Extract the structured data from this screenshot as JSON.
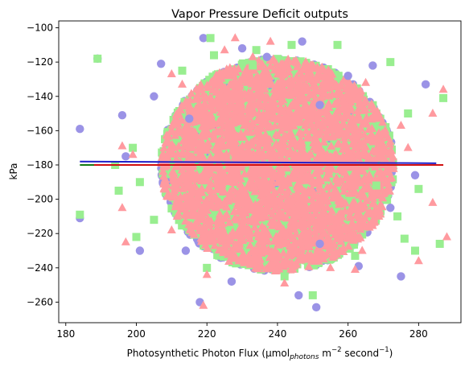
{
  "chart_data": {
    "type": "scatter",
    "title": "Vapor Pressure Deficit outputs",
    "xlabel_main": "Photosynthetic Photon Flux (µmol",
    "xlabel_sub": "photons",
    "xlabel_mid": " m",
    "xlabel_sup1": "−2",
    "xlabel_end": " second",
    "xlabel_sup2": "−1",
    "xlabel_close": ")",
    "ylabel": "kPa",
    "xlim": [
      178,
      292
    ],
    "ylim": [
      -272,
      -96
    ],
    "x_ticks": [
      180,
      200,
      220,
      240,
      260,
      280
    ],
    "y_ticks": [
      -100,
      -120,
      -140,
      -160,
      -180,
      -200,
      -220,
      -240,
      -260
    ],
    "grid": false,
    "cloud": {
      "center_x": 240,
      "center_y": -180,
      "radius_x": 33,
      "radius_y": 62
    },
    "series": [
      {
        "marker": "circle",
        "color": "#9b93e6",
        "trend_color": "#1f1fc8",
        "trend": {
          "x": [
            184,
            285
          ],
          "y": [
            -178,
            -179
          ]
        },
        "points": [
          [
            184,
            -159
          ],
          [
            184,
            -211
          ],
          [
            189,
            -118
          ],
          [
            196,
            -151
          ],
          [
            218,
            -260
          ],
          [
            251,
            -263
          ],
          [
            282,
            -133
          ],
          [
            252,
            -226
          ],
          [
            215,
            -153
          ],
          [
            205,
            -140
          ],
          [
            260,
            -128
          ],
          [
            230,
            -112
          ],
          [
            272,
            -205
          ],
          [
            201,
            -230
          ],
          [
            214,
            -230
          ],
          [
            247,
            -108
          ],
          [
            267,
            -122
          ],
          [
            219,
            -106
          ],
          [
            237,
            -117
          ],
          [
            279,
            -186
          ],
          [
            197,
            -175
          ],
          [
            275,
            -245
          ],
          [
            246,
            -256
          ],
          [
            227,
            -248
          ],
          [
            263,
            -239
          ],
          [
            207,
            -121
          ],
          [
            252,
            -145
          ]
        ]
      },
      {
        "marker": "square",
        "color": "#99ee90",
        "trend_color": "#137a13",
        "trend": {
          "x": [
            184,
            286
          ],
          "y": [
            -180,
            -180
          ]
        },
        "points": [
          [
            184,
            -209
          ],
          [
            189,
            -118
          ],
          [
            194,
            -180
          ],
          [
            213,
            -125
          ],
          [
            287,
            -141
          ],
          [
            286,
            -226
          ],
          [
            272,
            -120
          ],
          [
            250,
            -256
          ],
          [
            233,
            -122
          ],
          [
            277,
            -150
          ],
          [
            276,
            -223
          ],
          [
            200,
            -222
          ],
          [
            205,
            -212
          ],
          [
            234,
            -113
          ],
          [
            257,
            -110
          ],
          [
            242,
            -245
          ],
          [
            268,
            -192
          ],
          [
            220,
            -240
          ],
          [
            199,
            -170
          ],
          [
            274,
            -210
          ],
          [
            221,
            -106
          ],
          [
            280,
            -194
          ],
          [
            195,
            -195
          ],
          [
            262,
            -233
          ],
          [
            279,
            -230
          ],
          [
            222,
            -116
          ],
          [
            244,
            -110
          ],
          [
            201,
            -190
          ]
        ]
      },
      {
        "marker": "triangle",
        "color": "#ff9a9f",
        "trend_color": "#d01010",
        "trend": {
          "x": [
            188,
            287
          ],
          "y": [
            -180,
            -180
          ]
        },
        "points": [
          [
            228,
            -106
          ],
          [
            287,
            -136
          ],
          [
            219,
            -262
          ],
          [
            220,
            -244
          ],
          [
            264,
            -230
          ],
          [
            255,
            -240
          ],
          [
            210,
            -218
          ],
          [
            263,
            -140
          ],
          [
            199,
            -174
          ],
          [
            213,
            -133
          ],
          [
            275,
            -157
          ],
          [
            233,
            -117
          ],
          [
            277,
            -170
          ],
          [
            288,
            -222
          ],
          [
            280,
            -236
          ],
          [
            196,
            -205
          ],
          [
            210,
            -127
          ],
          [
            242,
            -249
          ],
          [
            196,
            -169
          ],
          [
            265,
            -132
          ],
          [
            225,
            -113
          ],
          [
            284,
            -150
          ],
          [
            197,
            -225
          ],
          [
            262,
            -241
          ],
          [
            238,
            -108
          ],
          [
            284,
            -202
          ]
        ]
      }
    ]
  }
}
